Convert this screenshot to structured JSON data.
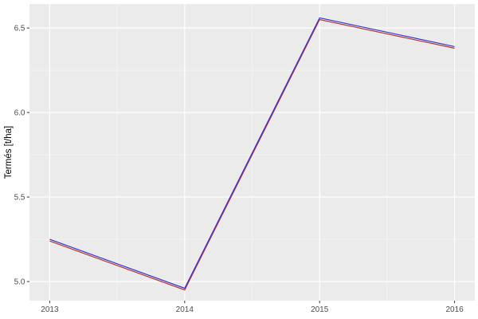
{
  "chart_data": {
    "type": "line",
    "title": "",
    "xlabel": "",
    "ylabel": "Termés [t/ha]",
    "x": [
      2013,
      2014,
      2015,
      2016
    ],
    "series": [
      {
        "name": "series-red",
        "color": "#b23434",
        "values": [
          5.24,
          4.95,
          6.55,
          6.38
        ]
      },
      {
        "name": "series-blue",
        "color": "#3333cc",
        "values": [
          5.25,
          4.96,
          6.56,
          6.39
        ]
      }
    ],
    "x_ticks": [
      "2013",
      "2014",
      "2015",
      "2016"
    ],
    "y_ticks": [
      "5.0",
      "5.5",
      "6.0",
      "6.5"
    ],
    "x_minor": [
      2013.5,
      2014.5,
      2015.5
    ],
    "y_minor": [
      5.25,
      5.75,
      6.25
    ],
    "xlim": [
      2012.85,
      2016.15
    ],
    "ylim": [
      4.887,
      6.642
    ],
    "grid": "on",
    "legend": "none",
    "colors": {
      "figure_bg": "#ffffff",
      "panel_bg": "#ebebeb",
      "grid_major": "#ffffff",
      "grid_minor": "#f6f6f6",
      "tick_mark": "#333333",
      "tick_label": "#4d4d4d",
      "axis_title": "#000000"
    }
  }
}
